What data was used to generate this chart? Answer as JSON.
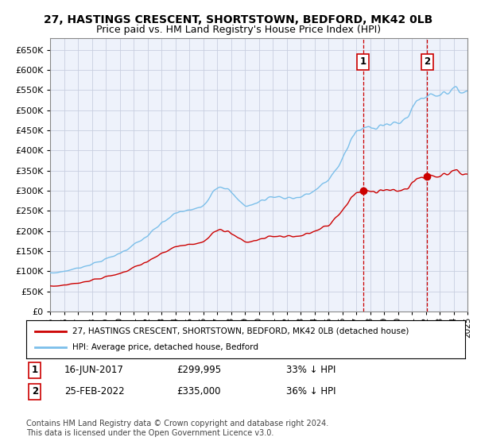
{
  "title": "27, HASTINGS CRESCENT, SHORTSTOWN, BEDFORD, MK42 0LB",
  "subtitle": "Price paid vs. HM Land Registry's House Price Index (HPI)",
  "title_fontsize": 10,
  "subtitle_fontsize": 9,
  "ylabel_ticks": [
    "£0",
    "£50K",
    "£100K",
    "£150K",
    "£200K",
    "£250K",
    "£300K",
    "£350K",
    "£400K",
    "£450K",
    "£500K",
    "£550K",
    "£600K",
    "£650K"
  ],
  "ytick_vals": [
    0,
    50000,
    100000,
    150000,
    200000,
    250000,
    300000,
    350000,
    400000,
    450000,
    500000,
    550000,
    600000,
    650000
  ],
  "hpi_color": "#7bbfea",
  "price_color": "#cc0000",
  "sale1_date_label": "16-JUN-2017",
  "sale1_price": 299995,
  "sale1_hpi_pct": "33% ↓ HPI",
  "sale2_date_label": "25-FEB-2022",
  "sale2_price": 335000,
  "sale2_hpi_pct": "36% ↓ HPI",
  "legend_label_red": "27, HASTINGS CRESCENT, SHORTSTOWN, BEDFORD, MK42 0LB (detached house)",
  "legend_label_blue": "HPI: Average price, detached house, Bedford",
  "footnote": "Contains HM Land Registry data © Crown copyright and database right 2024.\nThis data is licensed under the Open Government Licence v3.0.",
  "background_color": "#ffffff",
  "plot_bg_color": "#eef2fb",
  "grid_color": "#c8cfe0",
  "sale1_year": 2017.5,
  "sale2_year": 2022.1,
  "xmin": 1995,
  "xmax": 2025
}
